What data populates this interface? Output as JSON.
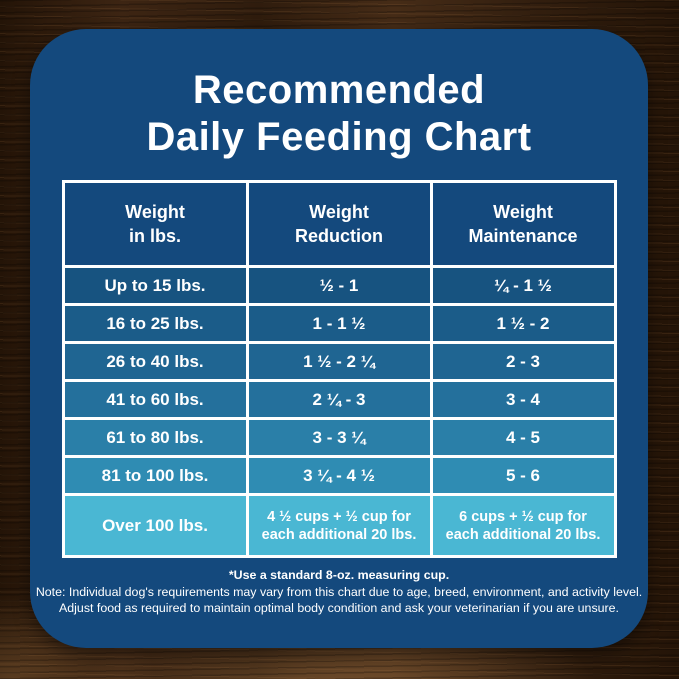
{
  "title": {
    "line1": "Recommended",
    "line2": "Daily Feeding Chart"
  },
  "table": {
    "headers": [
      "Weight\nin lbs.",
      "Weight\nReduction",
      "Weight\nMaintenance"
    ],
    "rows": [
      {
        "cells": [
          "Up to 15 lbs.",
          "½ - 1",
          "¼ - 1 ½"
        ]
      },
      {
        "cells": [
          "16 to 25 lbs.",
          "1 - 1 ½",
          "1 ½ - 2"
        ]
      },
      {
        "cells": [
          "26 to 40 lbs.",
          "1 ½ - 2 ¼",
          "2 - 3"
        ]
      },
      {
        "cells": [
          "41 to 60 lbs.",
          "2 ¼ - 3",
          "3 - 4"
        ]
      },
      {
        "cells": [
          "61 to 80 lbs.",
          "3 - 3 ¼",
          "4 - 5"
        ]
      },
      {
        "cells": [
          "81 to 100 lbs.",
          "3 ¼ - 4 ½",
          "5 - 6"
        ]
      },
      {
        "cells": [
          "Over 100 lbs.",
          "4 ½ cups  + ½ cup for\neach additional 20 lbs.",
          "6 cups  + ½ cup for\neach additional 20 lbs."
        ]
      }
    ]
  },
  "notes": {
    "measuring_cup": "*Use a standard 8-oz. measuring cup.",
    "line1": "Note: Individual dog's requirements may vary from this chart due to age, breed, environment, and activity level.",
    "line2": "Adjust food as required to maintain optimal body condition and ask your veterinarian if you are unsure."
  },
  "colors": {
    "card": "#14497d",
    "header": "#14497d",
    "grid_lines": "#ffffff",
    "text": "#ffffff",
    "rows": [
      "#175380",
      "#1b5c89",
      "#1f6592",
      "#24709c",
      "#2a7fa8",
      "#2f8cb3",
      "#4ab7d3"
    ]
  },
  "chart_data": {
    "type": "table",
    "title": "Recommended Daily Feeding Chart",
    "columns": [
      "Weight in lbs.",
      "Weight Reduction",
      "Weight Maintenance"
    ],
    "rows": [
      [
        "Up to 15 lbs.",
        "½ - 1",
        "¼ - 1 ½"
      ],
      [
        "16 to 25 lbs.",
        "1 - 1 ½",
        "1 ½ - 2"
      ],
      [
        "26 to 40 lbs.",
        "1 ½ - 2 ¼",
        "2 - 3"
      ],
      [
        "41 to 60 lbs.",
        "2 ¼ - 3",
        "3 - 4"
      ],
      [
        "61 to 80 lbs.",
        "3 - 3 ¼",
        "4 - 5"
      ],
      [
        "81 to 100 lbs.",
        "3 ¼ - 4 ½",
        "5 - 6"
      ],
      [
        "Over 100 lbs.",
        "4 ½ cups + ½ cup for each additional 20 lbs.",
        "6 cups + ½ cup for each additional 20 lbs."
      ]
    ],
    "footnote": "*Use a standard 8-oz. measuring cup."
  }
}
